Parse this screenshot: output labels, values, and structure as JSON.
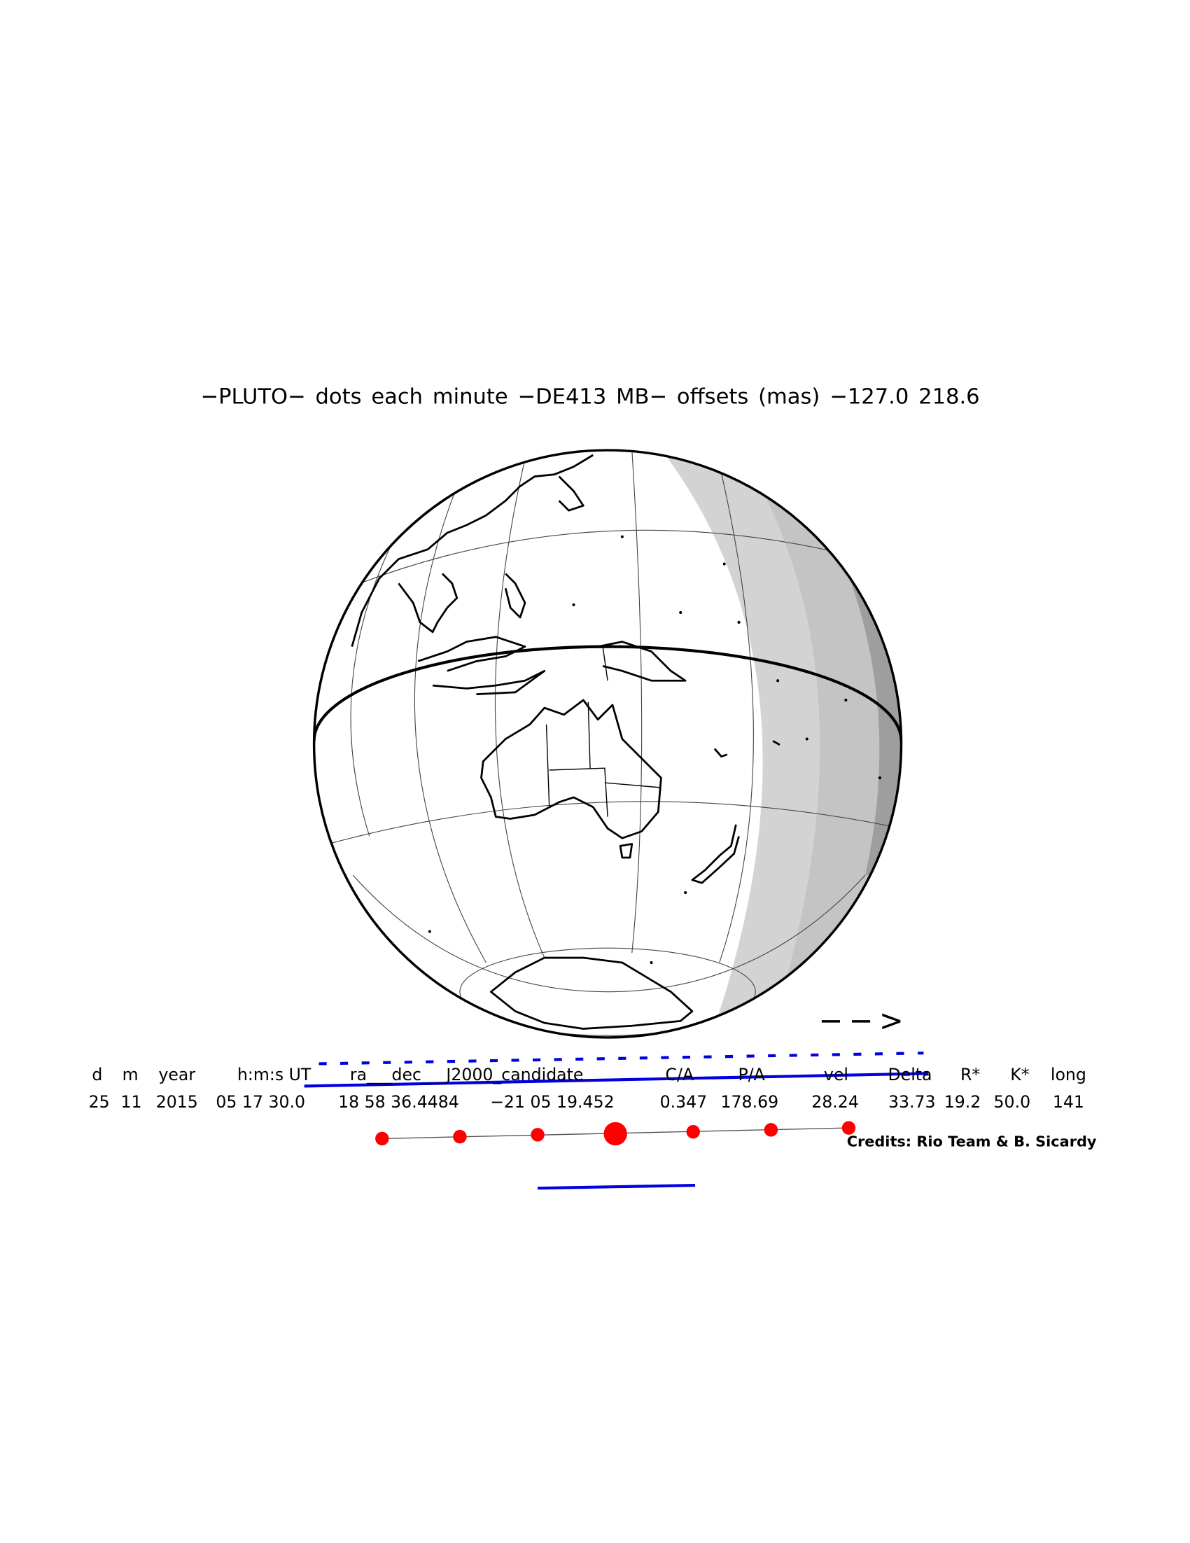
{
  "title": "−PLUTO−  dots each minute  −DE413 MB−  offsets (mas)  −127.0   218.6",
  "table": {
    "header": [
      "d",
      "m",
      "year",
      "h:m:s UT",
      "ra___dec___J2000_candidate",
      "C/A",
      "P/A",
      "vel",
      "Delta",
      "R*",
      "K*",
      "long"
    ],
    "rows": [
      [
        "25",
        "11",
        "2015",
        "05 17 30.0",
        "18 58 36.4484",
        "−21 05 19.452",
        "0.347",
        "178.69",
        "28.24",
        "33.73",
        "19.2",
        "50.0",
        "141"
      ]
    ]
  },
  "credits": "Credits: Rio Team & B. Sicardy",
  "arrow": "−−>"
}
